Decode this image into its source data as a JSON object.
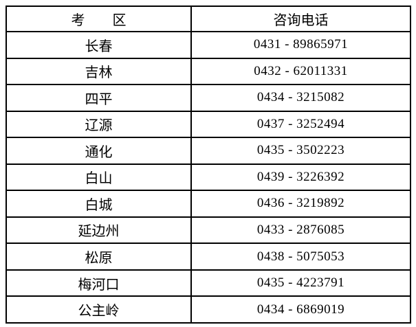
{
  "colors": {
    "border": "#000000",
    "text": "#000000",
    "background": "#ffffff"
  },
  "table": {
    "headers": {
      "region": "考　　区",
      "phone": "咨询电话"
    },
    "rows": [
      {
        "region": "长春",
        "phone": "0431 - 89865971"
      },
      {
        "region": "吉林",
        "phone": "0432 - 62011331"
      },
      {
        "region": "四平",
        "phone": "0434 - 3215082"
      },
      {
        "region": "辽源",
        "phone": "0437 - 3252494"
      },
      {
        "region": "通化",
        "phone": "0435 - 3502223"
      },
      {
        "region": "白山",
        "phone": "0439 - 3226392"
      },
      {
        "region": "白城",
        "phone": "0436 - 3219892"
      },
      {
        "region": "延边州",
        "phone": "0433 - 2876085"
      },
      {
        "region": "松原",
        "phone": "0438 - 5075053"
      },
      {
        "region": "梅河口",
        "phone": "0435 - 4223791"
      },
      {
        "region": "公主岭",
        "phone": "0434 - 6869019"
      }
    ]
  }
}
